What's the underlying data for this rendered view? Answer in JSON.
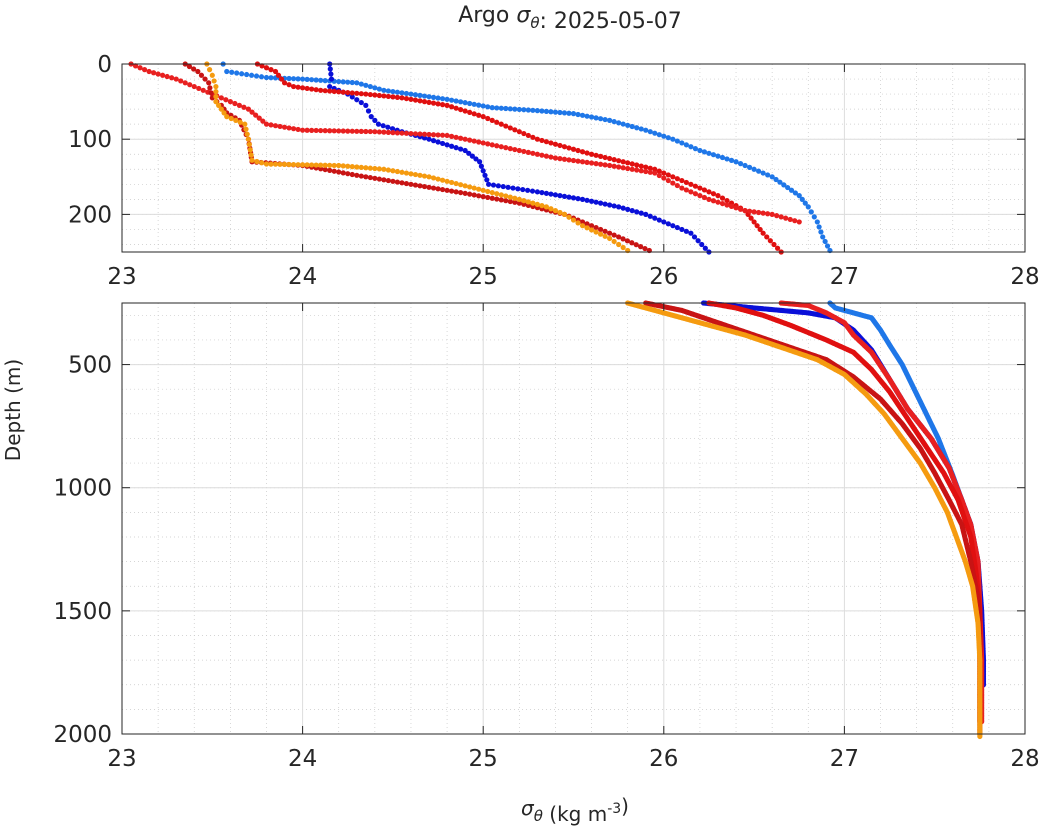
{
  "chart_data": [
    {
      "type": "scatter",
      "panel": "top",
      "title": "Argo σθ: 2025-05-07",
      "xlabel": "",
      "ylabel": "",
      "xlim": [
        23,
        28
      ],
      "ylim": [
        0,
        250
      ],
      "y_reversed": true,
      "xticks": [
        23,
        24,
        25,
        26,
        27,
        28
      ],
      "yticks": [
        0,
        100,
        200
      ],
      "grid": true,
      "minor_grid": true,
      "series": [
        {
          "color": "#1f77e8",
          "points": [
            [
              23.56,
              0
            ],
            [
              23.58,
              10
            ],
            [
              23.8,
              18
            ],
            [
              24.0,
              20
            ],
            [
              24.3,
              25
            ],
            [
              24.45,
              35
            ],
            [
              24.6,
              40
            ],
            [
              24.8,
              47
            ],
            [
              25.05,
              58
            ],
            [
              25.3,
              62
            ],
            [
              25.5,
              66
            ],
            [
              25.7,
              75
            ],
            [
              25.9,
              88
            ],
            [
              26.05,
              100
            ],
            [
              26.2,
              115
            ],
            [
              26.4,
              130
            ],
            [
              26.6,
              150
            ],
            [
              26.75,
              175
            ],
            [
              26.8,
              190
            ],
            [
              26.85,
              210
            ],
            [
              26.88,
              230
            ],
            [
              26.92,
              248
            ]
          ]
        },
        {
          "color": "#0a10d8",
          "points": [
            [
              24.15,
              0
            ],
            [
              24.16,
              20
            ],
            [
              24.15,
              30
            ],
            [
              24.25,
              40
            ],
            [
              24.35,
              55
            ],
            [
              24.38,
              70
            ],
            [
              24.42,
              80
            ],
            [
              24.55,
              90
            ],
            [
              24.7,
              100
            ],
            [
              24.9,
              115
            ],
            [
              24.98,
              130
            ],
            [
              25.03,
              160
            ],
            [
              25.3,
              170
            ],
            [
              25.55,
              180
            ],
            [
              25.75,
              190
            ],
            [
              25.9,
              200
            ],
            [
              26.05,
              215
            ],
            [
              26.15,
              225
            ],
            [
              26.25,
              250
            ]
          ]
        },
        {
          "color": "#e01010",
          "points": [
            [
              23.75,
              0
            ],
            [
              23.85,
              10
            ],
            [
              23.9,
              25
            ],
            [
              23.95,
              30
            ],
            [
              24.1,
              35
            ],
            [
              24.35,
              40
            ],
            [
              24.55,
              45
            ],
            [
              24.8,
              55
            ],
            [
              25.0,
              70
            ],
            [
              25.15,
              85
            ],
            [
              25.3,
              100
            ],
            [
              25.6,
              120
            ],
            [
              25.95,
              140
            ],
            [
              26.15,
              160
            ],
            [
              26.3,
              175
            ],
            [
              26.45,
              195
            ],
            [
              26.55,
              225
            ],
            [
              26.65,
              250
            ]
          ]
        },
        {
          "color": "#e82020",
          "points": [
            [
              23.05,
              0
            ],
            [
              23.15,
              10
            ],
            [
              23.3,
              20
            ],
            [
              23.45,
              35
            ],
            [
              23.6,
              50
            ],
            [
              23.7,
              60
            ],
            [
              23.8,
              80
            ],
            [
              24.0,
              88
            ],
            [
              24.4,
              90
            ],
            [
              24.8,
              95
            ],
            [
              25.1,
              110
            ],
            [
              25.4,
              125
            ],
            [
              25.7,
              135
            ],
            [
              25.95,
              145
            ],
            [
              26.1,
              165
            ],
            [
              26.25,
              180
            ],
            [
              26.45,
              195
            ],
            [
              26.6,
              200
            ],
            [
              26.75,
              210
            ]
          ]
        },
        {
          "color": "#c81414",
          "points": [
            [
              23.35,
              0
            ],
            [
              23.42,
              10
            ],
            [
              23.48,
              25
            ],
            [
              23.5,
              45
            ],
            [
              23.55,
              55
            ],
            [
              23.58,
              65
            ],
            [
              23.65,
              75
            ],
            [
              23.7,
              100
            ],
            [
              23.72,
              130
            ],
            [
              24.0,
              135
            ],
            [
              24.3,
              148
            ],
            [
              24.6,
              160
            ],
            [
              24.9,
              172
            ],
            [
              25.2,
              185
            ],
            [
              25.45,
              200
            ],
            [
              25.6,
              215
            ],
            [
              25.75,
              230
            ],
            [
              25.92,
              248
            ]
          ]
        },
        {
          "color": "#f59b10",
          "points": [
            [
              23.47,
              0
            ],
            [
              23.5,
              15
            ],
            [
              23.52,
              30
            ],
            [
              23.52,
              50
            ],
            [
              23.58,
              70
            ],
            [
              23.68,
              80
            ],
            [
              23.7,
              100
            ],
            [
              23.72,
              128
            ],
            [
              23.8,
              133
            ],
            [
              24.2,
              135
            ],
            [
              24.45,
              140
            ],
            [
              24.7,
              150
            ],
            [
              24.95,
              165
            ],
            [
              25.2,
              180
            ],
            [
              25.35,
              190
            ],
            [
              25.45,
              200
            ],
            [
              25.55,
              215
            ],
            [
              25.7,
              232
            ],
            [
              25.8,
              248
            ]
          ]
        }
      ]
    },
    {
      "type": "scatter",
      "panel": "bottom",
      "title": "",
      "xlabel": "σθ (kg m-3)",
      "ylabel": "Depth (m)",
      "xlim": [
        23,
        28
      ],
      "ylim": [
        250,
        2000
      ],
      "y_reversed": true,
      "xticks": [
        23,
        24,
        25,
        26,
        27,
        28
      ],
      "yticks": [
        500,
        1000,
        1500,
        2000
      ],
      "grid": true,
      "minor_grid": true,
      "series": [
        {
          "color": "#1f77e8",
          "points": [
            [
              26.92,
              250
            ],
            [
              26.95,
              270
            ],
            [
              27.05,
              290
            ],
            [
              27.15,
              310
            ],
            [
              27.2,
              360
            ],
            [
              27.25,
              420
            ],
            [
              27.32,
              500
            ],
            [
              27.42,
              650
            ],
            [
              27.52,
              800
            ],
            [
              27.6,
              950
            ],
            [
              27.65,
              1050
            ],
            [
              27.7,
              1150
            ],
            [
              27.73,
              1300
            ],
            [
              27.75,
              1500
            ],
            [
              27.76,
              1700
            ],
            [
              27.76,
              1800
            ]
          ]
        },
        {
          "color": "#0a10d8",
          "points": [
            [
              26.22,
              250
            ],
            [
              26.5,
              270
            ],
            [
              26.8,
              290
            ],
            [
              26.95,
              310
            ],
            [
              27.05,
              360
            ],
            [
              27.15,
              440
            ],
            [
              27.25,
              560
            ],
            [
              27.35,
              680
            ],
            [
              27.48,
              800
            ],
            [
              27.58,
              920
            ],
            [
              27.65,
              1050
            ],
            [
              27.7,
              1150
            ],
            [
              27.74,
              1300
            ],
            [
              27.76,
              1500
            ],
            [
              27.77,
              1700
            ],
            [
              27.77,
              1800
            ]
          ]
        },
        {
          "color": "#e82020",
          "points": [
            [
              26.65,
              250
            ],
            [
              26.8,
              260
            ],
            [
              26.9,
              290
            ],
            [
              27.0,
              330
            ],
            [
              27.05,
              380
            ],
            [
              27.15,
              450
            ],
            [
              27.25,
              560
            ],
            [
              27.35,
              680
            ],
            [
              27.48,
              800
            ],
            [
              27.58,
              920
            ],
            [
              27.65,
              1050
            ],
            [
              27.7,
              1150
            ],
            [
              27.74,
              1300
            ],
            [
              27.75,
              1500
            ],
            [
              27.76,
              1700
            ],
            [
              27.76,
              1950
            ]
          ]
        },
        {
          "color": "#e01010",
          "points": [
            [
              26.25,
              250
            ],
            [
              26.4,
              270
            ],
            [
              26.55,
              300
            ],
            [
              26.7,
              340
            ],
            [
              26.9,
              400
            ],
            [
              27.05,
              450
            ],
            [
              27.15,
              520
            ],
            [
              27.25,
              610
            ],
            [
              27.35,
              720
            ],
            [
              27.45,
              830
            ],
            [
              27.55,
              940
            ],
            [
              27.63,
              1050
            ],
            [
              27.7,
              1200
            ],
            [
              27.73,
              1350
            ],
            [
              27.75,
              1500
            ],
            [
              27.75,
              1700
            ],
            [
              27.75,
              1950
            ]
          ]
        },
        {
          "color": "#c81414",
          "points": [
            [
              25.9,
              250
            ],
            [
              26.1,
              280
            ],
            [
              26.3,
              330
            ],
            [
              26.5,
              380
            ],
            [
              26.7,
              430
            ],
            [
              26.9,
              480
            ],
            [
              27.05,
              550
            ],
            [
              27.2,
              640
            ],
            [
              27.32,
              740
            ],
            [
              27.42,
              840
            ],
            [
              27.5,
              940
            ],
            [
              27.58,
              1050
            ],
            [
              27.65,
              1150
            ],
            [
              27.7,
              1300
            ],
            [
              27.74,
              1450
            ],
            [
              27.75,
              1600
            ],
            [
              27.75,
              1800
            ],
            [
              27.75,
              2000
            ]
          ]
        },
        {
          "color": "#f59b10",
          "points": [
            [
              25.8,
              250
            ],
            [
              26.0,
              290
            ],
            [
              26.2,
              330
            ],
            [
              26.45,
              380
            ],
            [
              26.65,
              430
            ],
            [
              26.85,
              480
            ],
            [
              27.0,
              540
            ],
            [
              27.12,
              620
            ],
            [
              27.22,
              700
            ],
            [
              27.32,
              800
            ],
            [
              27.42,
              900
            ],
            [
              27.5,
              1000
            ],
            [
              27.57,
              1100
            ],
            [
              27.62,
              1200
            ],
            [
              27.67,
              1300
            ],
            [
              27.71,
              1400
            ],
            [
              27.74,
              1550
            ],
            [
              27.75,
              1700
            ],
            [
              27.75,
              1850
            ],
            [
              27.75,
              2010
            ]
          ]
        }
      ]
    }
  ]
}
